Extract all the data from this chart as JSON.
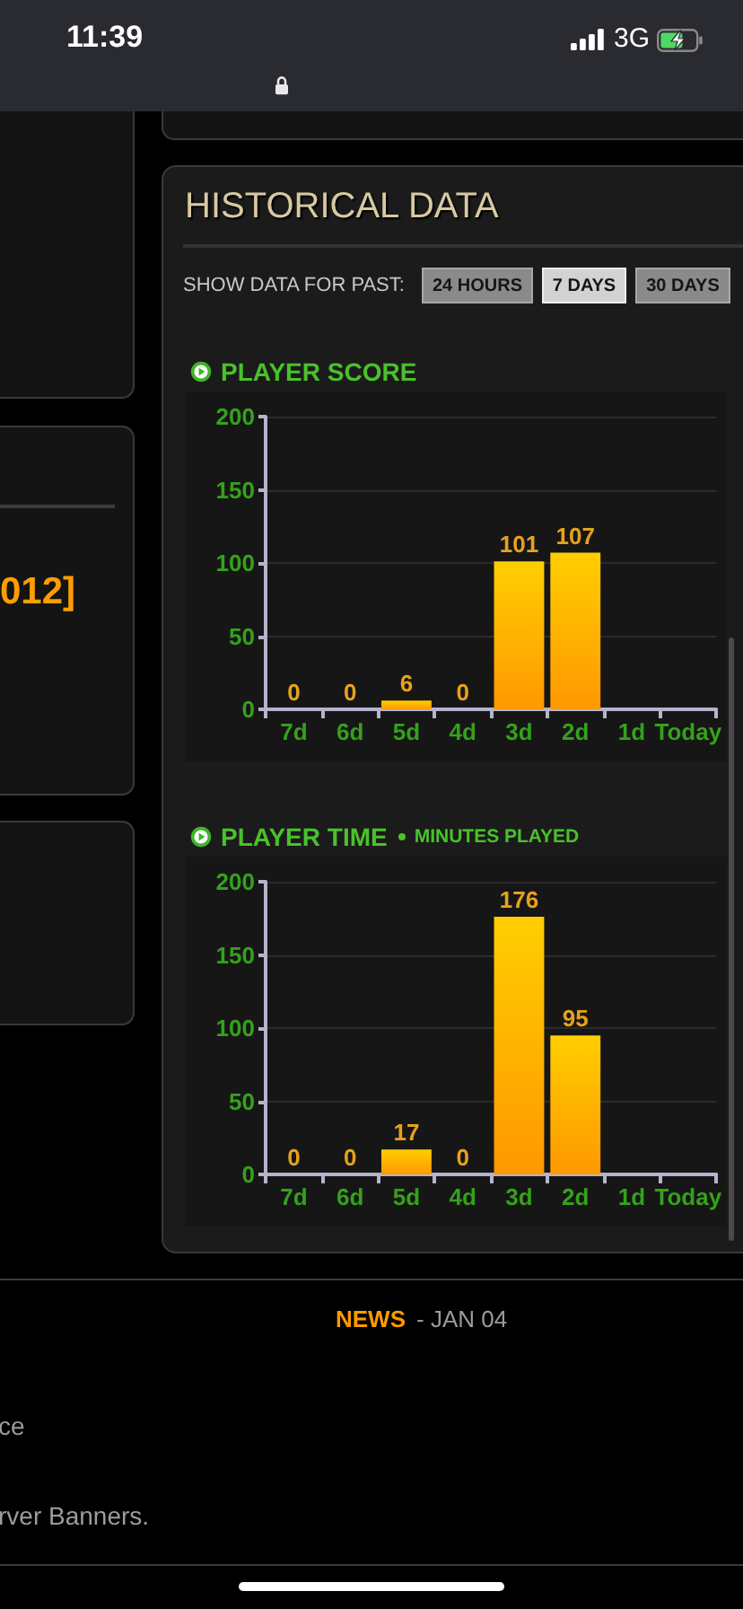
{
  "chart_data": [
    {
      "type": "other",
      "annotations": [
        "11:39",
        "3G",
        "012]",
        "ce",
        "rver Banners.",
        "NEWS",
        "- JAN 04"
      ]
    },
    {
      "type": "other",
      "title": "HISTORICAL DATA",
      "annotations": [
        "SHOW DATA FOR PAST:",
        "24 HOURS",
        "7 DAYS",
        "30 DAYS"
      ]
    },
    {
      "type": "bar",
      "title": "PLAYER SCORE",
      "categories": [
        "7d",
        "6d",
        "5d",
        "4d",
        "3d",
        "2d",
        "1d",
        "Today"
      ],
      "values": [
        0,
        0,
        6,
        0,
        101,
        107,
        null,
        null
      ],
      "color": "#ffb400",
      "ylim": [
        0,
        200
      ],
      "yticks": [
        0,
        50,
        100,
        150,
        200
      ],
      "grid": "y",
      "data_labels": true
    },
    {
      "type": "bar",
      "title": "PLAYER TIME",
      "subtitle": "MINUTES PLAYED",
      "categories": [
        "7d",
        "6d",
        "5d",
        "4d",
        "3d",
        "2d",
        "1d",
        "Today"
      ],
      "values": [
        0,
        0,
        17,
        0,
        176,
        95,
        null,
        null
      ],
      "color": "#ffb400",
      "ylim": [
        0,
        200
      ],
      "yticks": [
        0,
        50,
        100,
        150,
        200
      ],
      "grid": "y",
      "data_labels": true
    }
  ]
}
